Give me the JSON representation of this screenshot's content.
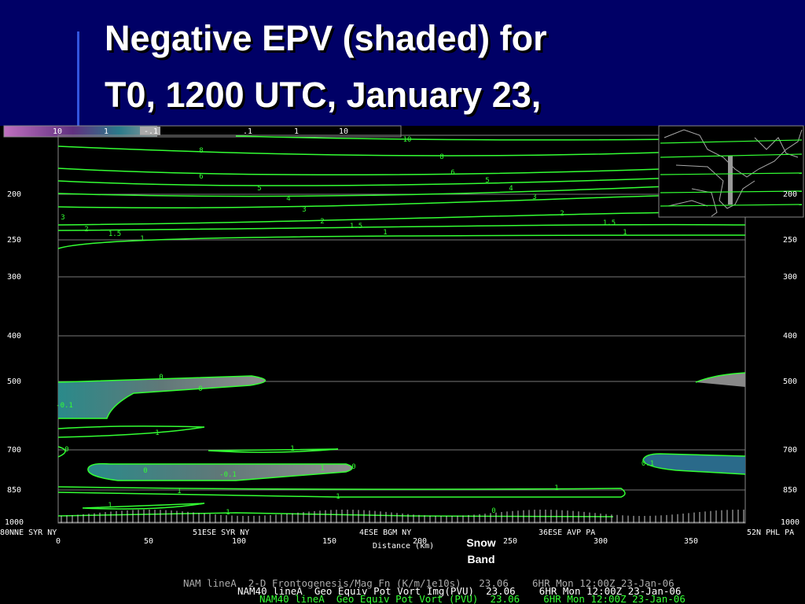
{
  "title_lines": [
    "Negative EPV (shaded) for",
    "T0, 1200 UTC, January 23,"
  ],
  "colorbar_labels": [
    "10",
    "1",
    "-.1",
    ".1",
    "1",
    "10"
  ],
  "y_axis_labels": [
    "200",
    "250",
    "300",
    "400",
    "500",
    "700",
    "850",
    "1000"
  ],
  "x_axis_labels": [
    "0",
    "50",
    "100",
    "150",
    "200",
    "250",
    "300",
    "350"
  ],
  "x_axis_title": "Distance (km)",
  "stations": [
    "80NNE SYR NY",
    "51ESE SYR NY",
    "4ESE BGM NY",
    "36ESE AVP PA",
    "52N PHL PA"
  ],
  "annotation_lines": [
    "Snow",
    "Band"
  ],
  "contour_labels": [
    "10",
    "8",
    "8",
    "6",
    "6",
    "5",
    "5",
    "4",
    "4",
    "3",
    "3",
    "3",
    "2",
    "2",
    "2",
    "1.5",
    "1.5",
    "1.5",
    "1",
    "1",
    "1",
    "0",
    "0",
    "-0.1",
    "1",
    "1",
    "0",
    "0",
    "-0.1",
    "1",
    "0",
    "1",
    "1",
    "1",
    "1",
    "1",
    "0",
    "0.1"
  ],
  "footer_lines": [
    "NAM lineA  2-D Frontogenesis/Mag Fn (K/m/1e10s)   23.06    6HR Mon 12:00Z 23-Jan-06",
    "NAM40 lineA  Geo Equiv Pot Vort Img(PVU)  23.06    6HR Mon 12:00Z 23-Jan-06",
    "NAM40 lineA  Geo Equiv Pot Vort (PVU)  23.06    6HR Mon 12:00Z 23-Jan-06"
  ]
}
